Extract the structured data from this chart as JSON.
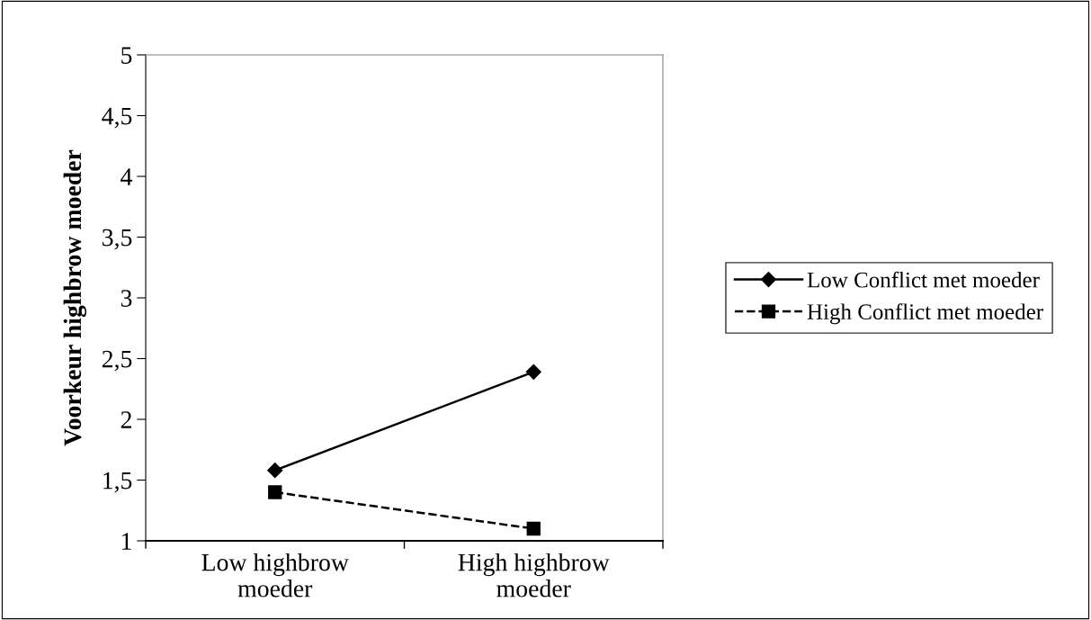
{
  "chart_data": {
    "type": "line",
    "ylabel": "Voorkeur highbrow moeder",
    "categories": [
      "Low highbrow\nmoeder",
      "High highbrow\nmoeder"
    ],
    "series": [
      {
        "name": "Low Conflict met moeder",
        "color": "#000000",
        "values": [
          1.58,
          2.39
        ],
        "marker": "diamond",
        "line_style": "solid"
      },
      {
        "name": "High Conflict met moeder",
        "color": "#000000",
        "values": [
          1.4,
          1.1
        ],
        "marker": "square",
        "line_style": "dashed"
      }
    ],
    "ylim": [
      1,
      5
    ],
    "yticks": [
      1,
      {
        "value": 1.5,
        "label": "1,5"
      },
      2,
      {
        "value": 2.5,
        "label": "2,5"
      },
      3,
      {
        "value": 3.5,
        "label": "3,5"
      },
      4,
      {
        "value": 4.5,
        "label": "4,5"
      },
      5
    ],
    "grid": false,
    "legend": "right"
  }
}
